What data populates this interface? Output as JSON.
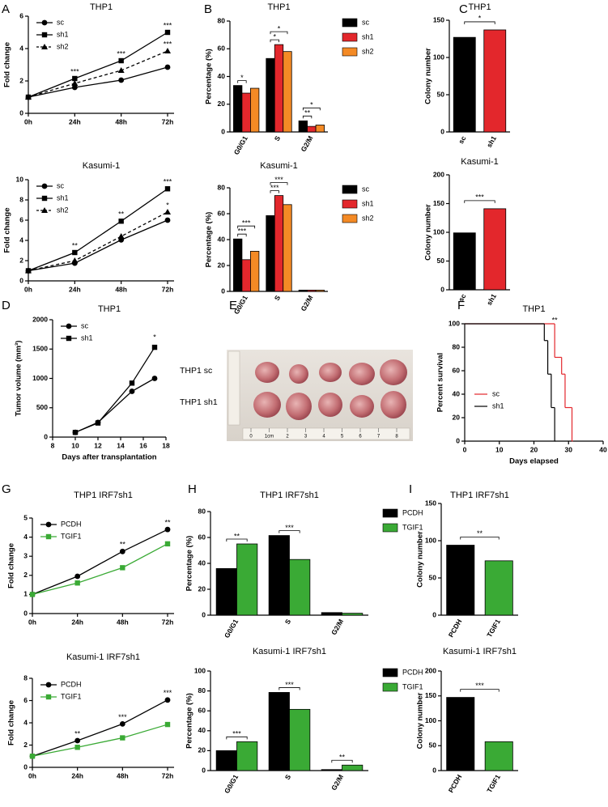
{
  "chart_data": [
    {
      "panel": "A",
      "type": "line",
      "title": "THP1",
      "ylabel": "Fold change",
      "categories": [
        "0h",
        "24h",
        "48h",
        "72h"
      ],
      "ylim": [
        0,
        6
      ],
      "yticks": [
        0,
        2,
        4,
        6
      ],
      "legend": "upper left",
      "series": [
        {
          "name": "sc",
          "color": "#000000",
          "marker": "circle",
          "linestyle": "solid",
          "values": [
            1,
            1.6,
            2.05,
            2.85
          ]
        },
        {
          "name": "sh1",
          "color": "#000000",
          "marker": "square",
          "linestyle": "solid",
          "values": [
            1,
            2.15,
            3.25,
            5.0
          ]
        },
        {
          "name": "sh2",
          "color": "#000000",
          "marker": "triangle",
          "linestyle": "dashed",
          "values": [
            1,
            1.85,
            2.65,
            3.85
          ]
        }
      ],
      "annotations": [
        {
          "text": "***",
          "index": 1,
          "series": 1
        },
        {
          "text": "***",
          "index": 2,
          "series": 1
        },
        {
          "text": "***",
          "index": 3,
          "series": 1
        },
        {
          "text": "***",
          "index": 3,
          "series": 2
        }
      ]
    },
    {
      "type": "line",
      "title": "Kasumi-1",
      "ylabel": "Fold change",
      "categories": [
        "0h",
        "24h",
        "48h",
        "72h"
      ],
      "ylim": [
        0,
        10
      ],
      "yticks": [
        0,
        2,
        4,
        6,
        8,
        10
      ],
      "legend": "upper left",
      "series": [
        {
          "name": "sc",
          "color": "#000000",
          "marker": "circle",
          "linestyle": "solid",
          "values": [
            1,
            1.75,
            4.05,
            6.0
          ]
        },
        {
          "name": "sh1",
          "color": "#000000",
          "marker": "square",
          "linestyle": "solid",
          "values": [
            1,
            2.8,
            5.9,
            9.1
          ]
        },
        {
          "name": "sh2",
          "color": "#000000",
          "marker": "triangle",
          "linestyle": "dashed",
          "values": [
            1,
            2.0,
            4.4,
            6.8
          ]
        }
      ],
      "annotations": [
        {
          "text": "**",
          "index": 1,
          "series": 1
        },
        {
          "text": "**",
          "index": 2,
          "series": 1
        },
        {
          "text": "***",
          "index": 3,
          "series": 1
        },
        {
          "text": "*",
          "index": 3,
          "series": 2
        }
      ]
    },
    {
      "panel": "B",
      "type": "grouped_bar",
      "title": "THP1",
      "ylabel": "Percentage (%)",
      "categories": [
        "G0/G1",
        "S",
        "G2/M"
      ],
      "ylim": [
        0,
        80
      ],
      "yticks": [
        0,
        20,
        40,
        60,
        80
      ],
      "legend": "right",
      "series": [
        {
          "name": "sc",
          "color": "#000000",
          "values": [
            33.5,
            53,
            8
          ]
        },
        {
          "name": "sh1",
          "color": "#e3272c",
          "values": [
            28,
            63,
            4
          ]
        },
        {
          "name": "sh2",
          "color": "#f48a25",
          "values": [
            31.5,
            58,
            5
          ]
        }
      ],
      "annotations": [
        {
          "text": "*",
          "category": 0,
          "from": 0,
          "to": 1
        },
        {
          "text": "*",
          "category": 1,
          "from": 0,
          "to": 1
        },
        {
          "text": "*",
          "category": 1,
          "from": 0,
          "to": 2
        },
        {
          "text": "**",
          "category": 2,
          "from": 0,
          "to": 1
        },
        {
          "text": "*",
          "category": 2,
          "from": 0,
          "to": 2
        }
      ]
    },
    {
      "type": "grouped_bar",
      "title": "Kasumi-1",
      "ylabel": "Percentage (%)",
      "categories": [
        "G0/G1",
        "S",
        "G2/M"
      ],
      "ylim": [
        0,
        80
      ],
      "yticks": [
        0,
        20,
        40,
        60,
        80
      ],
      "legend": "right",
      "series": [
        {
          "name": "sc",
          "color": "#000000",
          "values": [
            40.5,
            58.5,
            1
          ]
        },
        {
          "name": "sh1",
          "color": "#e3272c",
          "values": [
            24.5,
            74,
            1
          ]
        },
        {
          "name": "sh2",
          "color": "#f48a25",
          "values": [
            31,
            67,
            1
          ]
        }
      ],
      "annotations": [
        {
          "text": "***",
          "category": 0,
          "from": 0,
          "to": 1
        },
        {
          "text": "***",
          "category": 0,
          "from": 0,
          "to": 2
        },
        {
          "text": "***",
          "category": 1,
          "from": 0,
          "to": 1
        },
        {
          "text": "***",
          "category": 1,
          "from": 0,
          "to": 2
        }
      ]
    },
    {
      "panel": "C",
      "type": "bar",
      "title": "THP1",
      "ylabel": "Colony number",
      "categories": [
        "sc",
        "sh1"
      ],
      "values": [
        127,
        137
      ],
      "colors": [
        "#000000",
        "#e3272c"
      ],
      "ylim": [
        0,
        150
      ],
      "yticks": [
        0,
        50,
        100,
        150
      ],
      "annotations": [
        {
          "text": "*",
          "from": 0,
          "to": 1
        }
      ]
    },
    {
      "type": "bar",
      "title": "Kasumi-1",
      "ylabel": "Colony number",
      "categories": [
        "sc",
        "sh1"
      ],
      "values": [
        99,
        141
      ],
      "colors": [
        "#000000",
        "#e3272c"
      ],
      "ylim": [
        0,
        200
      ],
      "yticks": [
        0,
        50,
        100,
        150,
        200
      ],
      "annotations": [
        {
          "text": "***",
          "from": 0,
          "to": 1
        }
      ]
    },
    {
      "panel": "D",
      "type": "xy_line",
      "title": "THP1",
      "ylabel": "Tumor volume (mm³)",
      "xlabel": "Days after transplantation",
      "x": [
        10,
        12,
        15,
        17
      ],
      "xlim": [
        8,
        18
      ],
      "xticks": [
        8,
        10,
        12,
        14,
        16,
        18
      ],
      "ylim": [
        0,
        2000
      ],
      "yticks": [
        0,
        500,
        1000,
        1500,
        2000
      ],
      "legend": "upper left",
      "series": [
        {
          "name": "sc",
          "color": "#000000",
          "marker": "circle",
          "linestyle": "solid",
          "values": [
            80,
            250,
            780,
            1000
          ]
        },
        {
          "name": "sh1",
          "color": "#000000",
          "marker": "square",
          "linestyle": "solid",
          "values": [
            80,
            240,
            920,
            1530
          ]
        }
      ],
      "annotations": [
        {
          "text": "*",
          "index": 3,
          "series": 1
        }
      ]
    },
    {
      "panel": "E",
      "type": "image",
      "labels": [
        "THP1 sc",
        "THP1 sh1"
      ],
      "ruler_labels": [
        "0",
        "1cm",
        "2",
        "3",
        "4",
        "5",
        "6",
        "7",
        "8"
      ]
    },
    {
      "panel": "F",
      "type": "survival",
      "title": "THP1",
      "ylabel": "Percent survival",
      "xlabel": "Days elapsed",
      "xlim": [
        0,
        40
      ],
      "xticks": [
        0,
        10,
        20,
        30,
        40
      ],
      "ylim": [
        0,
        100
      ],
      "yticks": [
        0,
        20,
        40,
        60,
        80,
        100
      ],
      "legend": "lower left",
      "series": [
        {
          "name": "sc",
          "color": "#e3272c",
          "x": [
            0,
            26,
            28,
            29,
            31
          ],
          "values": [
            100,
            71.4,
            57.1,
            28.6,
            0
          ]
        },
        {
          "name": "sh1",
          "color": "#000000",
          "x": [
            0,
            23,
            24,
            25,
            26
          ],
          "values": [
            100,
            85.7,
            57.1,
            28.6,
            0
          ]
        }
      ],
      "annotations": [
        {
          "text": "**"
        }
      ]
    },
    {
      "panel": "G",
      "type": "line",
      "title": "THP1 IRF7sh1",
      "ylabel": "Fold change",
      "categories": [
        "0h",
        "24h",
        "48h",
        "72h"
      ],
      "ylim": [
        0,
        5
      ],
      "yticks": [
        0,
        1,
        2,
        3,
        4,
        5
      ],
      "legend": "upper left",
      "series": [
        {
          "name": "PCDH",
          "color": "#000000",
          "marker": "circle",
          "linestyle": "solid",
          "values": [
            1,
            1.95,
            3.25,
            4.4
          ]
        },
        {
          "name": "TGIF1",
          "color": "#3aaa35",
          "marker": "square",
          "linestyle": "solid",
          "values": [
            1,
            1.6,
            2.4,
            3.65
          ]
        }
      ],
      "annotations": [
        {
          "text": "**",
          "index": 2,
          "series": 0
        },
        {
          "text": "**",
          "index": 3,
          "series": 0
        }
      ]
    },
    {
      "type": "line",
      "title": "Kasumi-1 IRF7sh1",
      "ylabel": "Fold change",
      "categories": [
        "0h",
        "24h",
        "48h",
        "72h"
      ],
      "ylim": [
        0,
        8
      ],
      "yticks": [
        0,
        2,
        4,
        6,
        8
      ],
      "legend": "upper left",
      "series": [
        {
          "name": "PCDH",
          "color": "#000000",
          "marker": "circle",
          "linestyle": "solid",
          "values": [
            1,
            2.4,
            3.9,
            6.05
          ]
        },
        {
          "name": "TGIF1",
          "color": "#3aaa35",
          "marker": "square",
          "linestyle": "solid",
          "values": [
            1,
            1.8,
            2.65,
            3.85
          ]
        }
      ],
      "annotations": [
        {
          "text": "**",
          "index": 1,
          "series": 0
        },
        {
          "text": "***",
          "index": 2,
          "series": 0
        },
        {
          "text": "***",
          "index": 3,
          "series": 0
        }
      ]
    },
    {
      "panel": "H",
      "type": "grouped_bar",
      "title": "THP1 IRF7sh1",
      "ylabel": "Percentage (%)",
      "categories": [
        "G0/G1",
        "S",
        "G2/M"
      ],
      "ylim": [
        0,
        80
      ],
      "yticks": [
        0,
        20,
        40,
        60,
        80
      ],
      "legend": "right",
      "series": [
        {
          "name": "PCDH",
          "color": "#000000",
          "values": [
            36,
            61.5,
            2
          ]
        },
        {
          "name": "TGIF1",
          "color": "#3aaa35",
          "values": [
            55,
            43,
            1.5
          ]
        }
      ],
      "annotations": [
        {
          "text": "**",
          "category": 0,
          "from": 0,
          "to": 1
        },
        {
          "text": "***",
          "category": 1,
          "from": 0,
          "to": 1
        }
      ]
    },
    {
      "type": "grouped_bar",
      "title": "Kasumi-1 IRF7sh1",
      "ylabel": "Percentage (%)",
      "categories": [
        "G0/G1",
        "S",
        "G2/M"
      ],
      "ylim": [
        0,
        100
      ],
      "yticks": [
        0,
        20,
        40,
        60,
        80,
        100
      ],
      "legend": "right",
      "series": [
        {
          "name": "PCDH",
          "color": "#000000",
          "values": [
            20,
            78.5,
            1
          ]
        },
        {
          "name": "TGIF1",
          "color": "#3aaa35",
          "values": [
            29,
            61.5,
            5.5
          ]
        }
      ],
      "annotations": [
        {
          "text": "***",
          "category": 0,
          "from": 0,
          "to": 1
        },
        {
          "text": "***",
          "category": 1,
          "from": 0,
          "to": 1
        },
        {
          "text": "**",
          "category": 2,
          "from": 0,
          "to": 1
        }
      ]
    },
    {
      "panel": "I",
      "type": "bar",
      "title": "THP1 IRF7sh1",
      "ylabel": "Colony number",
      "categories": [
        "PCDH",
        "TGIF1"
      ],
      "values": [
        94,
        73
      ],
      "colors": [
        "#000000",
        "#3aaa35"
      ],
      "ylim": [
        0,
        150
      ],
      "yticks": [
        0,
        50,
        100,
        150
      ],
      "annotations": [
        {
          "text": "**",
          "from": 0,
          "to": 1
        }
      ]
    },
    {
      "type": "bar",
      "title": "Kasumi-1 IRF7sh1",
      "ylabel": "Colony number",
      "categories": [
        "PCDH",
        "TGIF1"
      ],
      "values": [
        147,
        58
      ],
      "colors": [
        "#000000",
        "#3aaa35"
      ],
      "ylim": [
        0,
        200
      ],
      "yticks": [
        0,
        50,
        100,
        150,
        200
      ],
      "annotations": [
        {
          "text": "***",
          "from": 0,
          "to": 1
        }
      ]
    }
  ]
}
